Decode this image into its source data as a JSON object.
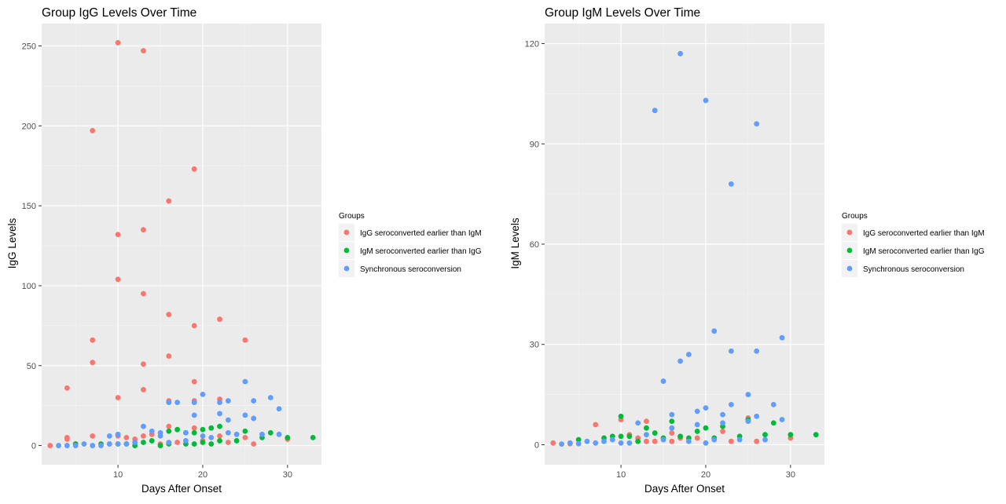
{
  "chart_data": [
    {
      "type": "scatter",
      "title": "Group IgG Levels Over Time",
      "xlabel": "Days After Onset",
      "ylabel": "IgG Levels",
      "xlim": [
        1,
        34
      ],
      "ylim": [
        -12,
        264
      ],
      "x_ticks": [
        10,
        20,
        30
      ],
      "y_ticks": [
        0,
        50,
        100,
        150,
        200,
        250
      ],
      "grid": true,
      "legend_title": "Groups",
      "legend_position": "right",
      "series": [
        {
          "name": "IgG seroconverted earlier than IgM",
          "color": "#F8766D",
          "points": [
            [
              2,
              0
            ],
            [
              4,
              36
            ],
            [
              4,
              5
            ],
            [
              4,
              4
            ],
            [
              5,
              1
            ],
            [
              7,
              197
            ],
            [
              7,
              66
            ],
            [
              7,
              52
            ],
            [
              7,
              6
            ],
            [
              9,
              1
            ],
            [
              10,
              252
            ],
            [
              10,
              132
            ],
            [
              10,
              104
            ],
            [
              10,
              30
            ],
            [
              10,
              6
            ],
            [
              11,
              5
            ],
            [
              12,
              4
            ],
            [
              13,
              247
            ],
            [
              13,
              135
            ],
            [
              13,
              95
            ],
            [
              13,
              51
            ],
            [
              13,
              35
            ],
            [
              13,
              6
            ],
            [
              14,
              7
            ],
            [
              15,
              1
            ],
            [
              16,
              153
            ],
            [
              16,
              82
            ],
            [
              16,
              56
            ],
            [
              16,
              28
            ],
            [
              16,
              12
            ],
            [
              17,
              2
            ],
            [
              19,
              173
            ],
            [
              19,
              75
            ],
            [
              19,
              40
            ],
            [
              19,
              28
            ],
            [
              19,
              11
            ],
            [
              20,
              3
            ],
            [
              22,
              79
            ],
            [
              22,
              29
            ],
            [
              22,
              6
            ],
            [
              23,
              2
            ],
            [
              25,
              66
            ],
            [
              25,
              5
            ],
            [
              26,
              1
            ],
            [
              30,
              4
            ]
          ]
        },
        {
          "name": "IgM seroconverted earlier than IgG",
          "color": "#00BA38",
          "points": [
            [
              5,
              1
            ],
            [
              8,
              1
            ],
            [
              10,
              1
            ],
            [
              11,
              1
            ],
            [
              12,
              0
            ],
            [
              13,
              2
            ],
            [
              14,
              3
            ],
            [
              15,
              0
            ],
            [
              16,
              9
            ],
            [
              16,
              1
            ],
            [
              17,
              10
            ],
            [
              18,
              1
            ],
            [
              18,
              8
            ],
            [
              19,
              1
            ],
            [
              19,
              8
            ],
            [
              20,
              10
            ],
            [
              20,
              2
            ],
            [
              21,
              11
            ],
            [
              21,
              1
            ],
            [
              22,
              12
            ],
            [
              22,
              3
            ],
            [
              24,
              3
            ],
            [
              25,
              9
            ],
            [
              27,
              5
            ],
            [
              28,
              8
            ],
            [
              30,
              5
            ],
            [
              33,
              5
            ]
          ]
        },
        {
          "name": "Synchronous seroconversion",
          "color": "#619CFF",
          "points": [
            [
              3,
              0
            ],
            [
              4,
              0
            ],
            [
              5,
              0
            ],
            [
              6,
              1
            ],
            [
              7,
              0
            ],
            [
              8,
              0
            ],
            [
              9,
              6
            ],
            [
              9,
              1
            ],
            [
              10,
              7
            ],
            [
              10,
              1
            ],
            [
              11,
              1
            ],
            [
              12,
              2
            ],
            [
              13,
              12
            ],
            [
              14,
              9
            ],
            [
              15,
              8
            ],
            [
              15,
              6
            ],
            [
              16,
              27
            ],
            [
              16,
              2
            ],
            [
              17,
              27
            ],
            [
              18,
              8
            ],
            [
              18,
              3
            ],
            [
              19,
              27
            ],
            [
              19,
              19
            ],
            [
              20,
              32
            ],
            [
              20,
              6
            ],
            [
              21,
              5
            ],
            [
              22,
              27
            ],
            [
              22,
              20
            ],
            [
              23,
              28
            ],
            [
              23,
              16
            ],
            [
              23,
              8
            ],
            [
              24,
              7
            ],
            [
              25,
              40
            ],
            [
              25,
              19
            ],
            [
              26,
              28
            ],
            [
              26,
              17
            ],
            [
              27,
              7
            ],
            [
              28,
              30
            ],
            [
              29,
              23
            ],
            [
              29,
              7
            ]
          ]
        }
      ]
    },
    {
      "type": "scatter",
      "title": "Group IgM Levels Over Time",
      "xlabel": "Days After Onset",
      "ylabel": "IgM Levels",
      "xlim": [
        1,
        34
      ],
      "ylim": [
        -6,
        126
      ],
      "x_ticks": [
        10,
        20,
        30
      ],
      "y_ticks": [
        0,
        30,
        60,
        90,
        120
      ],
      "grid": true,
      "legend_title": "Groups",
      "legend_position": "right",
      "series": [
        {
          "name": "IgG seroconverted earlier than IgM",
          "color": "#F8766D",
          "points": [
            [
              2,
              0.5
            ],
            [
              4,
              0.3
            ],
            [
              7,
              6
            ],
            [
              10,
              7.5
            ],
            [
              11,
              3
            ],
            [
              12,
              2
            ],
            [
              13,
              7
            ],
            [
              13,
              1
            ],
            [
              14,
              1
            ],
            [
              16,
              3.5
            ],
            [
              16,
              1
            ],
            [
              17,
              2
            ],
            [
              19,
              2
            ],
            [
              22,
              4
            ],
            [
              23,
              1
            ],
            [
              25,
              8
            ],
            [
              26,
              1
            ],
            [
              30,
              2
            ]
          ]
        },
        {
          "name": "IgM seroconverted earlier than IgG",
          "color": "#00BA38",
          "points": [
            [
              5,
              1.5
            ],
            [
              8,
              2
            ],
            [
              9,
              2.5
            ],
            [
              10,
              8.5
            ],
            [
              10,
              2.5
            ],
            [
              11,
              2.5
            ],
            [
              12,
              1
            ],
            [
              13,
              5
            ],
            [
              14,
              3.5
            ],
            [
              15,
              2
            ],
            [
              16,
              7
            ],
            [
              17,
              2.5
            ],
            [
              18,
              2
            ],
            [
              19,
              4
            ],
            [
              20,
              5
            ],
            [
              21,
              2
            ],
            [
              22,
              5.5
            ],
            [
              24,
              2.5
            ],
            [
              25,
              7.5
            ],
            [
              27,
              3
            ],
            [
              28,
              6.5
            ],
            [
              30,
              3
            ],
            [
              33,
              3
            ]
          ]
        },
        {
          "name": "Synchronous seroconversion",
          "color": "#619CFF",
          "points": [
            [
              3,
              0.2
            ],
            [
              4,
              0.5
            ],
            [
              5,
              0.3
            ],
            [
              6,
              1
            ],
            [
              7,
              0.5
            ],
            [
              8,
              1
            ],
            [
              9,
              1.5
            ],
            [
              10,
              0.5
            ],
            [
              11,
              0.5
            ],
            [
              12,
              6.5
            ],
            [
              13,
              3
            ],
            [
              14,
              100
            ],
            [
              15,
              19
            ],
            [
              15,
              1.5
            ],
            [
              16,
              9
            ],
            [
              16,
              5
            ],
            [
              17,
              117
            ],
            [
              17,
              25
            ],
            [
              18,
              27
            ],
            [
              18,
              1
            ],
            [
              19,
              10
            ],
            [
              19,
              6
            ],
            [
              20,
              103
            ],
            [
              20,
              11
            ],
            [
              20,
              0.5
            ],
            [
              21,
              34
            ],
            [
              21,
              1.5
            ],
            [
              22,
              9
            ],
            [
              22,
              6.5
            ],
            [
              23,
              78
            ],
            [
              23,
              28
            ],
            [
              23,
              12
            ],
            [
              24,
              1.5
            ],
            [
              25,
              15
            ],
            [
              25,
              7
            ],
            [
              26,
              96
            ],
            [
              26,
              28
            ],
            [
              26,
              8.5
            ],
            [
              27,
              1.5
            ],
            [
              28,
              12
            ],
            [
              29,
              32
            ],
            [
              29,
              7.5
            ]
          ]
        }
      ]
    }
  ]
}
